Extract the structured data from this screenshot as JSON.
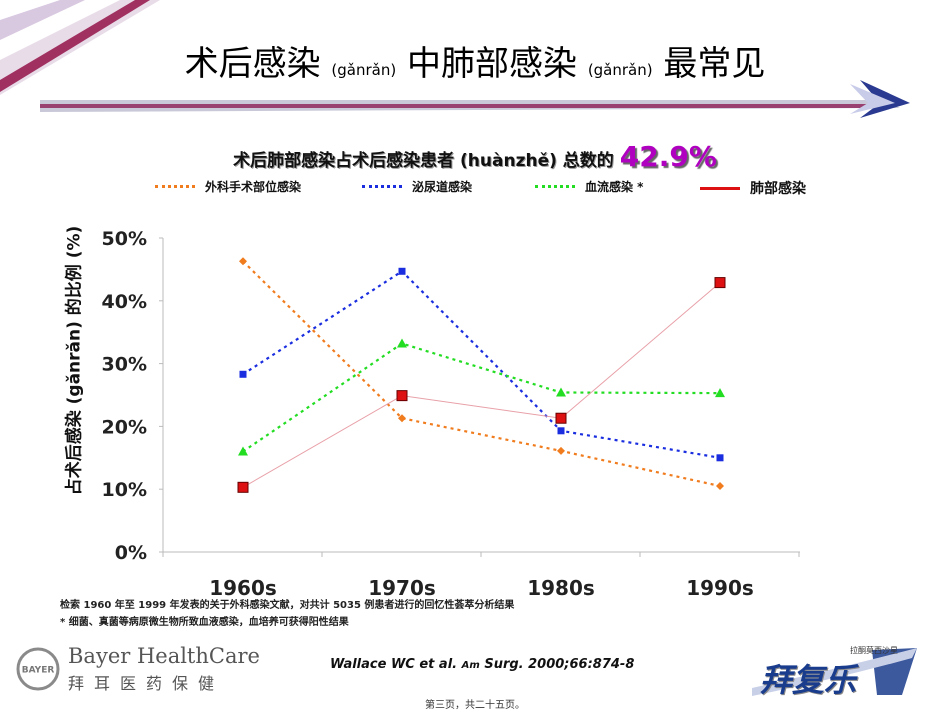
{
  "slide": {
    "title_main1": "术后感染",
    "title_pinyin1": "(gǎnrǎn)",
    "title_main2": "中肺部感染",
    "title_pinyin2": "(gǎnrǎn)",
    "title_main3": "最常见",
    "subtitle_text": "术后肺部感染占术后感染患者 (huànzhě) 总数的",
    "subtitle_pct": "42.9%",
    "notes_line1": "检索 1960 年至 1999 年发表的关于外科感染文献，对共计 5035 例患者进行的回忆性荟萃分析结果",
    "notes_line2": "* 细菌、真菌等病原微生物所致血液感染，血培养可获得阳性结果",
    "citation_main": "Wallace WC et al.",
    "citation_am": "Am",
    "citation_rest": "Surg. 2000;66:874-8",
    "page_number": "第三页，共二十五页。",
    "brand_en": "Bayer HealthCare",
    "brand_cn": "拜耳医药保健",
    "bayer_mark": "BAYER",
    "product_small": "拉酮莫西沙星",
    "product_name": "拜复乐"
  },
  "colors": {
    "orange": "#f07c1e",
    "blue": "#1a2ee0",
    "green": "#22dd22",
    "red": "#dd1111",
    "purple": "#b000c0",
    "navy": "#1a3c8c"
  },
  "chart_data": {
    "type": "line",
    "categories": [
      "1960s",
      "1970s",
      "1980s",
      "1990s"
    ],
    "ylabel": "占术后感染 (gǎnrǎn) 的比例 (%)",
    "ylim": [
      0,
      50
    ],
    "yticks": [
      "0%",
      "10%",
      "20%",
      "30%",
      "40%",
      "50%"
    ],
    "grid": false,
    "legend_position": "top",
    "series": [
      {
        "name": "外科手术部位感染",
        "values": [
          46.3,
          21.3,
          16.1,
          10.5
        ],
        "color": "#f07c1e",
        "marker": "diamond",
        "dash": "3,4"
      },
      {
        "name": "泌尿道感染",
        "values": [
          28.3,
          44.7,
          19.3,
          15.0
        ],
        "color": "#1a2ee0",
        "marker": "square",
        "dash": "3,4"
      },
      {
        "name": "血流感染 *",
        "values": [
          16.0,
          33.2,
          25.4,
          25.3
        ],
        "color": "#22dd22",
        "marker": "triangle",
        "dash": "3,4"
      },
      {
        "name": "肺部感染",
        "values": [
          10.3,
          24.9,
          21.3,
          42.9
        ],
        "color": "#dd1111",
        "marker": "square-big",
        "dash": ""
      }
    ]
  }
}
